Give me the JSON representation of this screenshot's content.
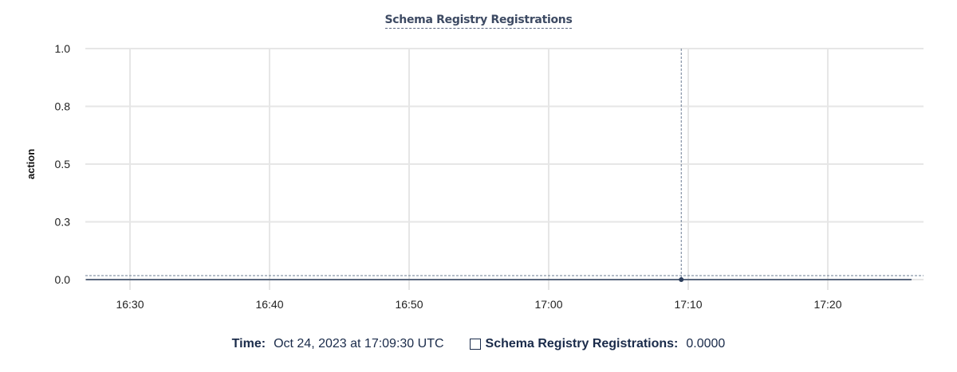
{
  "chart_data": {
    "type": "line",
    "title": "Schema Registry Registrations",
    "ylabel": "action",
    "xlabel": "",
    "ylim": [
      0,
      1
    ],
    "y_ticks": [
      0,
      0.25,
      0.5,
      0.75,
      1
    ],
    "y_tick_labels": [
      "0.0",
      "0.3",
      "0.5",
      "0.8",
      "1.0"
    ],
    "x_range": [
      "16:26:50",
      "17:26:00"
    ],
    "x_tick_labels": [
      "16:30",
      "16:40",
      "16:50",
      "17:00",
      "17:10",
      "17:20"
    ],
    "grid": true,
    "series": [
      {
        "name": "Schema Registry Registrations",
        "color": "#2c3e5c",
        "x": [
          "16:26:50",
          "17:09:30",
          "17:26:00"
        ],
        "values": [
          0,
          0,
          0
        ]
      }
    ],
    "hover": {
      "x": "17:09:30",
      "value": 0
    }
  },
  "legend": {
    "time_label": "Time:",
    "time_value": "Oct 24, 2023 at 17:09:30 UTC",
    "series_label": "Schema Registry Registrations:",
    "series_value": "0.0000"
  }
}
